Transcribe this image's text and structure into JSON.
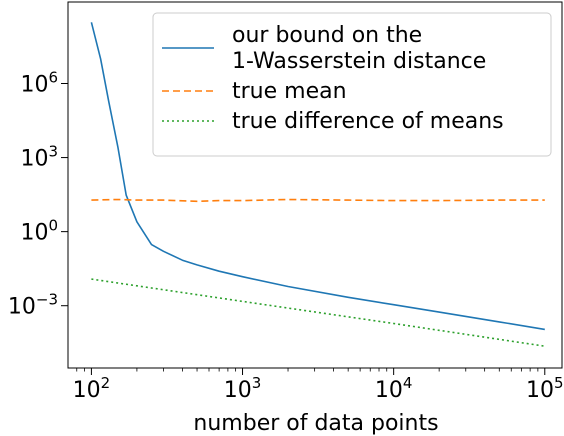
{
  "chart_data": {
    "type": "line",
    "title": "",
    "xlabel": "number of data points",
    "ylabel": "",
    "xscale": "log",
    "yscale": "log",
    "xlim": [
      70,
      130000
    ],
    "ylim": [
      3e-06,
      2000000000
    ],
    "grid": false,
    "legend_position": "top-right",
    "x_ticks": [
      {
        "value": 100,
        "base": "10",
        "exp": "2"
      },
      {
        "value": 1000,
        "base": "10",
        "exp": "3"
      },
      {
        "value": 10000,
        "base": "10",
        "exp": "4"
      },
      {
        "value": 100000,
        "base": "10",
        "exp": "5"
      }
    ],
    "y_ticks": [
      {
        "value": 0.001,
        "base": "10",
        "exp": "−3"
      },
      {
        "value": 1,
        "base": "10",
        "exp": "0"
      },
      {
        "value": 1000,
        "base": "10",
        "exp": "3"
      },
      {
        "value": 1000000,
        "base": "10",
        "exp": "6"
      }
    ],
    "series": [
      {
        "name": [
          "our bound on the",
          " 1-Wasserstein distance"
        ],
        "color": "#1f77b4",
        "dash": "solid",
        "x": [
          100,
          115,
          130,
          150,
          170,
          200,
          250,
          300,
          400,
          500,
          700,
          1000,
          2000,
          5000,
          10000,
          20000,
          50000,
          100000
        ],
        "y": [
          300000000,
          10000000,
          200000,
          2500,
          30,
          2.5,
          0.3,
          0.16,
          0.07,
          0.045,
          0.025,
          0.015,
          0.006,
          0.0022,
          0.0011,
          0.00055,
          0.00022,
          0.00011
        ]
      },
      {
        "name": [
          "true mean"
        ],
        "color": "#ff7f0e",
        "dash": "dashed",
        "x": [
          100,
          150,
          200,
          300,
          500,
          700,
          1000,
          2000,
          5000,
          10000,
          20000,
          50000,
          100000
        ],
        "y": [
          19,
          20,
          19,
          19,
          17,
          18,
          18,
          20,
          19,
          18,
          18,
          19,
          19
        ]
      },
      {
        "name": [
          "true difference of means"
        ],
        "color": "#2ca02c",
        "dash": "dotted",
        "x": [
          100,
          1000,
          10000,
          100000
        ],
        "y": [
          0.012,
          0.0015,
          0.00019,
          2.3e-05
        ]
      }
    ]
  },
  "colors": {
    "axis": "#000000",
    "legend_border": "#cccccc"
  }
}
